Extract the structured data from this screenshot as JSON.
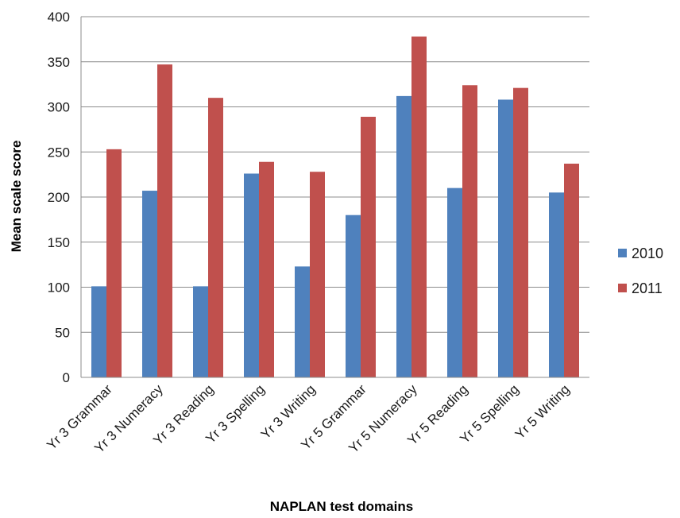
{
  "chart_data": {
    "type": "bar",
    "title": "",
    "xlabel": "NAPLAN test domains",
    "ylabel": "Mean scale score",
    "ylim": [
      0,
      400
    ],
    "yticks": [
      0,
      50,
      100,
      150,
      200,
      250,
      300,
      350,
      400
    ],
    "grid": true,
    "legend_position": "right",
    "categories": [
      "Yr 3 Grammar",
      "Yr 3 Numeracy",
      "Yr 3 Reading",
      "Yr 3 Spelling",
      "Yr 3 Writing",
      "Yr 5 Grammar",
      "Yr 5 Numeracy",
      "Yr 5 Reading",
      "Yr 5 Spelling",
      "Yr 5 Writing"
    ],
    "series": [
      {
        "name": "2010",
        "color": "#4f81bd",
        "values": [
          101,
          207,
          101,
          226,
          123,
          180,
          312,
          210,
          308,
          205
        ]
      },
      {
        "name": "2011",
        "color": "#c0504d",
        "values": [
          253,
          347,
          310,
          239,
          228,
          289,
          378,
          324,
          321,
          237
        ]
      }
    ]
  }
}
